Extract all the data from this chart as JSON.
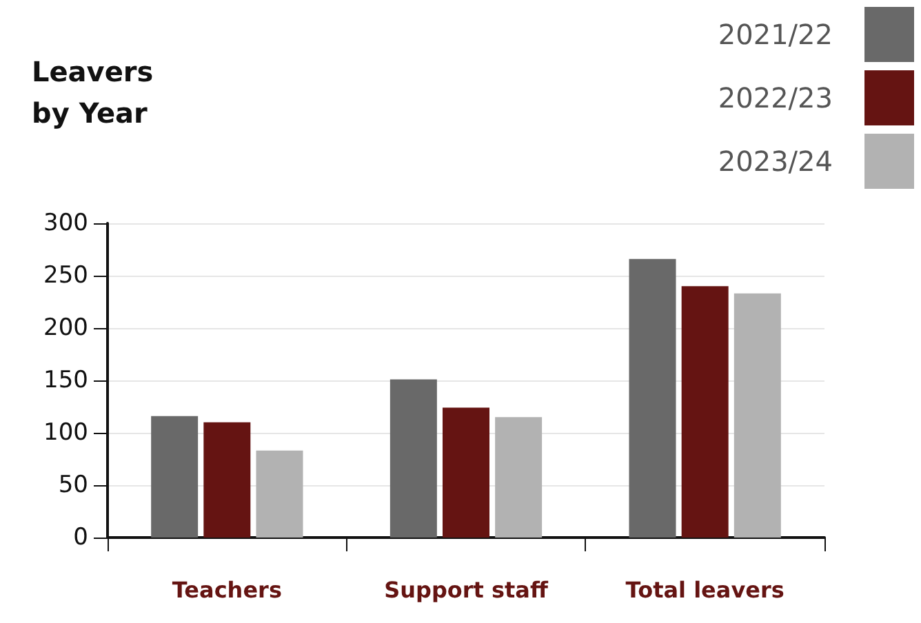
{
  "chart_data": {
    "type": "bar",
    "title": "Leavers\nby Year",
    "categories": [
      "Teachers",
      "Support staff",
      "Total leavers"
    ],
    "series": [
      {
        "name": "2021/22",
        "color": "#696969",
        "values": [
          116,
          151,
          266
        ]
      },
      {
        "name": "2022/23",
        "color": "#651412",
        "values": [
          110,
          124,
          240
        ]
      },
      {
        "name": "2023/24",
        "color": "#b2b2b2",
        "values": [
          83,
          115,
          233
        ]
      }
    ],
    "ylim": [
      0,
      300
    ],
    "yticks": [
      0,
      50,
      100,
      150,
      200,
      250,
      300
    ],
    "grid": "y",
    "legend": "top right"
  }
}
